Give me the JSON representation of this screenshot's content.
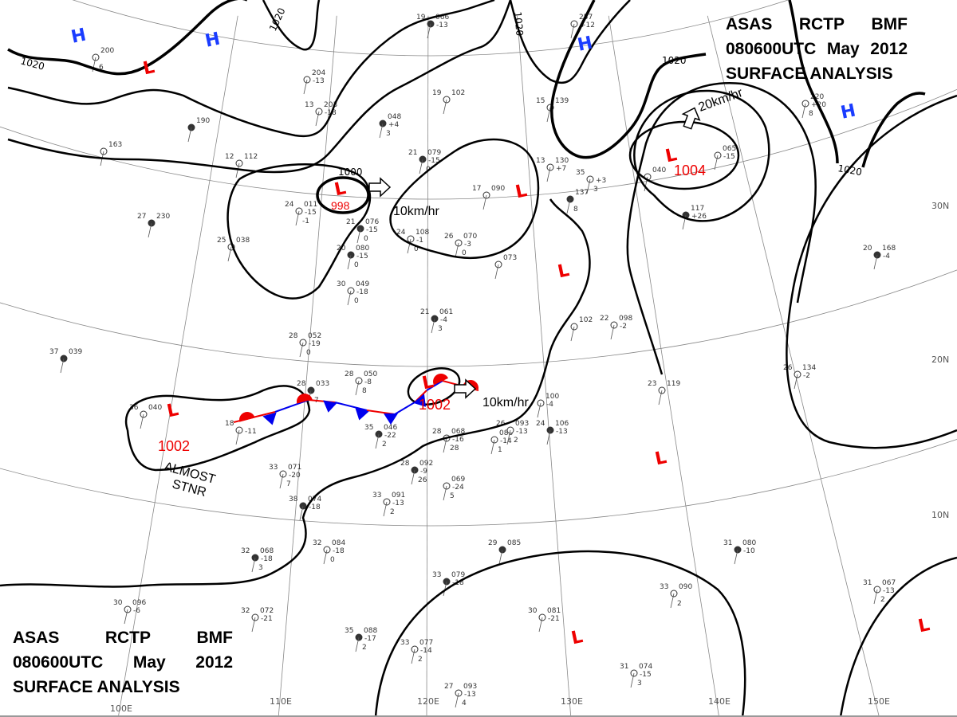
{
  "title": {
    "line1": [
      "ASAS",
      "RCTP",
      "BMF"
    ],
    "line2": [
      "080600UTC",
      "May",
      "2012"
    ],
    "line3": "SURFACE ANALYSIS"
  },
  "colors": {
    "high": "#1a3cff",
    "low": "#ee0000",
    "isobar": "#000000",
    "graticule": "#888888",
    "cold_front": "#0000ee",
    "warm_front": "#ee0000"
  },
  "graticule": {
    "longitudes": [
      "100E",
      "110E",
      "120E",
      "130E",
      "140E",
      "150E"
    ],
    "latitudes": [
      "30N",
      "20N",
      "10N"
    ]
  },
  "pressure_centers": [
    {
      "type": "H",
      "pressure": ""
    },
    {
      "type": "H",
      "pressure": ""
    },
    {
      "type": "H",
      "pressure": ""
    },
    {
      "type": "H",
      "pressure": ""
    },
    {
      "type": "L",
      "pressure": ""
    },
    {
      "type": "L",
      "pressure": "998"
    },
    {
      "type": "L",
      "pressure": ""
    },
    {
      "type": "L",
      "pressure": ""
    },
    {
      "type": "L",
      "pressure": "1002"
    },
    {
      "type": "L",
      "pressure": "1002"
    },
    {
      "type": "L",
      "pressure": "1004"
    },
    {
      "type": "L",
      "pressure": ""
    },
    {
      "type": "L",
      "pressure": ""
    },
    {
      "type": "L",
      "pressure": ""
    }
  ],
  "isobar_labels": [
    "1020",
    "1020",
    "1020",
    "1020",
    "1020",
    "1000"
  ],
  "motion_labels": [
    "10km/hr",
    "10km/hr",
    "20km/hr"
  ],
  "front_label": [
    "ALMOST",
    "STNR"
  ],
  "stations": [
    {
      "t": "19",
      "p": "066",
      "td": "-13",
      "x": ""
    },
    {
      "t": "",
      "p": "204",
      "td": "-13",
      "x": ""
    },
    {
      "t": "13",
      "p": "203",
      "td": "-18",
      "x": ""
    },
    {
      "t": "",
      "p": "048",
      "td": "+4",
      "x": "3"
    },
    {
      "t": "19",
      "p": "102",
      "td": "",
      "x": ""
    },
    {
      "t": "12",
      "p": "112",
      "td": "",
      "x": ""
    },
    {
      "t": "21",
      "p": "079",
      "td": "-15",
      "x": "0"
    },
    {
      "t": "17",
      "p": "090",
      "td": "",
      "x": ""
    },
    {
      "t": "24",
      "p": "011",
      "td": "-15",
      "x": "-1"
    },
    {
      "t": "21",
      "p": "076",
      "td": "-15",
      "x": "0"
    },
    {
      "t": "24",
      "p": "108",
      "td": "-1",
      "x": "0"
    },
    {
      "t": "26",
      "p": "070",
      "td": "-3",
      "x": "0"
    },
    {
      "t": "20",
      "p": "080",
      "td": "-15",
      "x": "0"
    },
    {
      "t": "",
      "p": "073",
      "td": "",
      "x": ""
    },
    {
      "t": "30",
      "p": "049",
      "td": "-18",
      "x": "0"
    },
    {
      "t": "21",
      "p": "061",
      "td": "-4",
      "x": "3"
    },
    {
      "t": "28",
      "p": "052",
      "td": "-19",
      "x": "0"
    },
    {
      "t": "28",
      "p": "050",
      "td": "-8",
      "x": "8"
    },
    {
      "t": "35",
      "p": "046",
      "td": "-22",
      "x": "2"
    },
    {
      "t": "28",
      "p": "068",
      "td": "-16",
      "x": "28"
    },
    {
      "t": "",
      "p": "083",
      "td": "-14",
      "x": "1"
    },
    {
      "t": "28",
      "p": "092",
      "td": "-9",
      "x": "26"
    },
    {
      "t": "",
      "p": "069",
      "td": "-24",
      "x": "5"
    },
    {
      "t": "33",
      "p": "071",
      "td": "-20",
      "x": "7"
    },
    {
      "t": "38",
      "p": "074",
      "td": "-18",
      "x": ""
    },
    {
      "t": "33",
      "p": "091",
      "td": "-13",
      "x": "2"
    },
    {
      "t": "32",
      "p": "084",
      "td": "-18",
      "x": "0"
    },
    {
      "t": "32",
      "p": "068",
      "td": "-18",
      "x": "3"
    },
    {
      "t": "32",
      "p": "072",
      "td": "-21",
      "x": ""
    },
    {
      "t": "30",
      "p": "096",
      "td": "-6",
      "x": ""
    },
    {
      "t": "35",
      "p": "088",
      "td": "-17",
      "x": "2"
    },
    {
      "t": "33",
      "p": "077",
      "td": "-14",
      "x": "2"
    },
    {
      "t": "27",
      "p": "093",
      "td": "-13",
      "x": "4"
    },
    {
      "t": "29",
      "p": "085",
      "td": "",
      "x": ""
    },
    {
      "t": "30",
      "p": "081",
      "td": "-21",
      "x": ""
    },
    {
      "t": "31",
      "p": "074",
      "td": "-15",
      "x": "3"
    },
    {
      "t": "31",
      "p": "080",
      "td": "-10",
      "x": ""
    },
    {
      "t": "23",
      "p": "119",
      "td": "",
      "x": ""
    },
    {
      "t": "26",
      "p": "134",
      "td": "-2",
      "x": ""
    },
    {
      "t": "20",
      "p": "168",
      "td": "-4",
      "x": ""
    },
    {
      "t": "",
      "p": "100",
      "td": "-4",
      "x": ""
    },
    {
      "t": "26",
      "p": "093",
      "td": "-13",
      "x": "2"
    },
    {
      "t": "24",
      "p": "106",
      "td": "-13",
      "x": ""
    },
    {
      "t": "",
      "p": "102",
      "td": "",
      "x": ""
    },
    {
      "t": "22",
      "p": "098",
      "td": "-2",
      "x": ""
    },
    {
      "t": "",
      "p": "117",
      "td": "+26",
      "x": ""
    },
    {
      "t": "",
      "p": "065",
      "td": "-15",
      "x": ""
    },
    {
      "t": "",
      "p": "220",
      "td": "+20",
      "x": "8"
    },
    {
      "t": "37",
      "p": "039",
      "td": "",
      "x": ""
    },
    {
      "t": "36",
      "p": "040",
      "td": "",
      "x": ""
    },
    {
      "t": "18",
      "p": "",
      "td": "-11",
      "x": ""
    },
    {
      "t": "28",
      "p": "033",
      "td": "",
      "x": "7"
    },
    {
      "t": "",
      "p": "257",
      "td": "+12",
      "x": ""
    },
    {
      "t": "",
      "p": "163",
      "td": "",
      "x": ""
    },
    {
      "t": "",
      "p": "190",
      "td": "",
      "x": ""
    },
    {
      "t": "",
      "p": "200",
      "td": "",
      "x": "6"
    },
    {
      "t": "25",
      "p": "038",
      "td": "",
      "x": ""
    },
    {
      "t": "27",
      "p": "230",
      "td": "",
      "x": ""
    },
    {
      "t": "33",
      "p": "090",
      "td": "",
      "x": "2"
    },
    {
      "t": "31",
      "p": "067",
      "td": "-13",
      "x": "2"
    },
    {
      "t": "33",
      "p": "079",
      "td": "-18",
      "x": ""
    },
    {
      "t": "15",
      "p": "139",
      "td": "",
      "x": ""
    },
    {
      "t": "13",
      "p": "130",
      "td": "+7",
      "x": ""
    },
    {
      "t": "",
      "p": "137",
      "td": "",
      "x": "8"
    },
    {
      "t": "35",
      "p": "",
      "td": "+3",
      "x": "3"
    },
    {
      "t": "",
      "p": "040",
      "td": "",
      "x": ""
    }
  ]
}
